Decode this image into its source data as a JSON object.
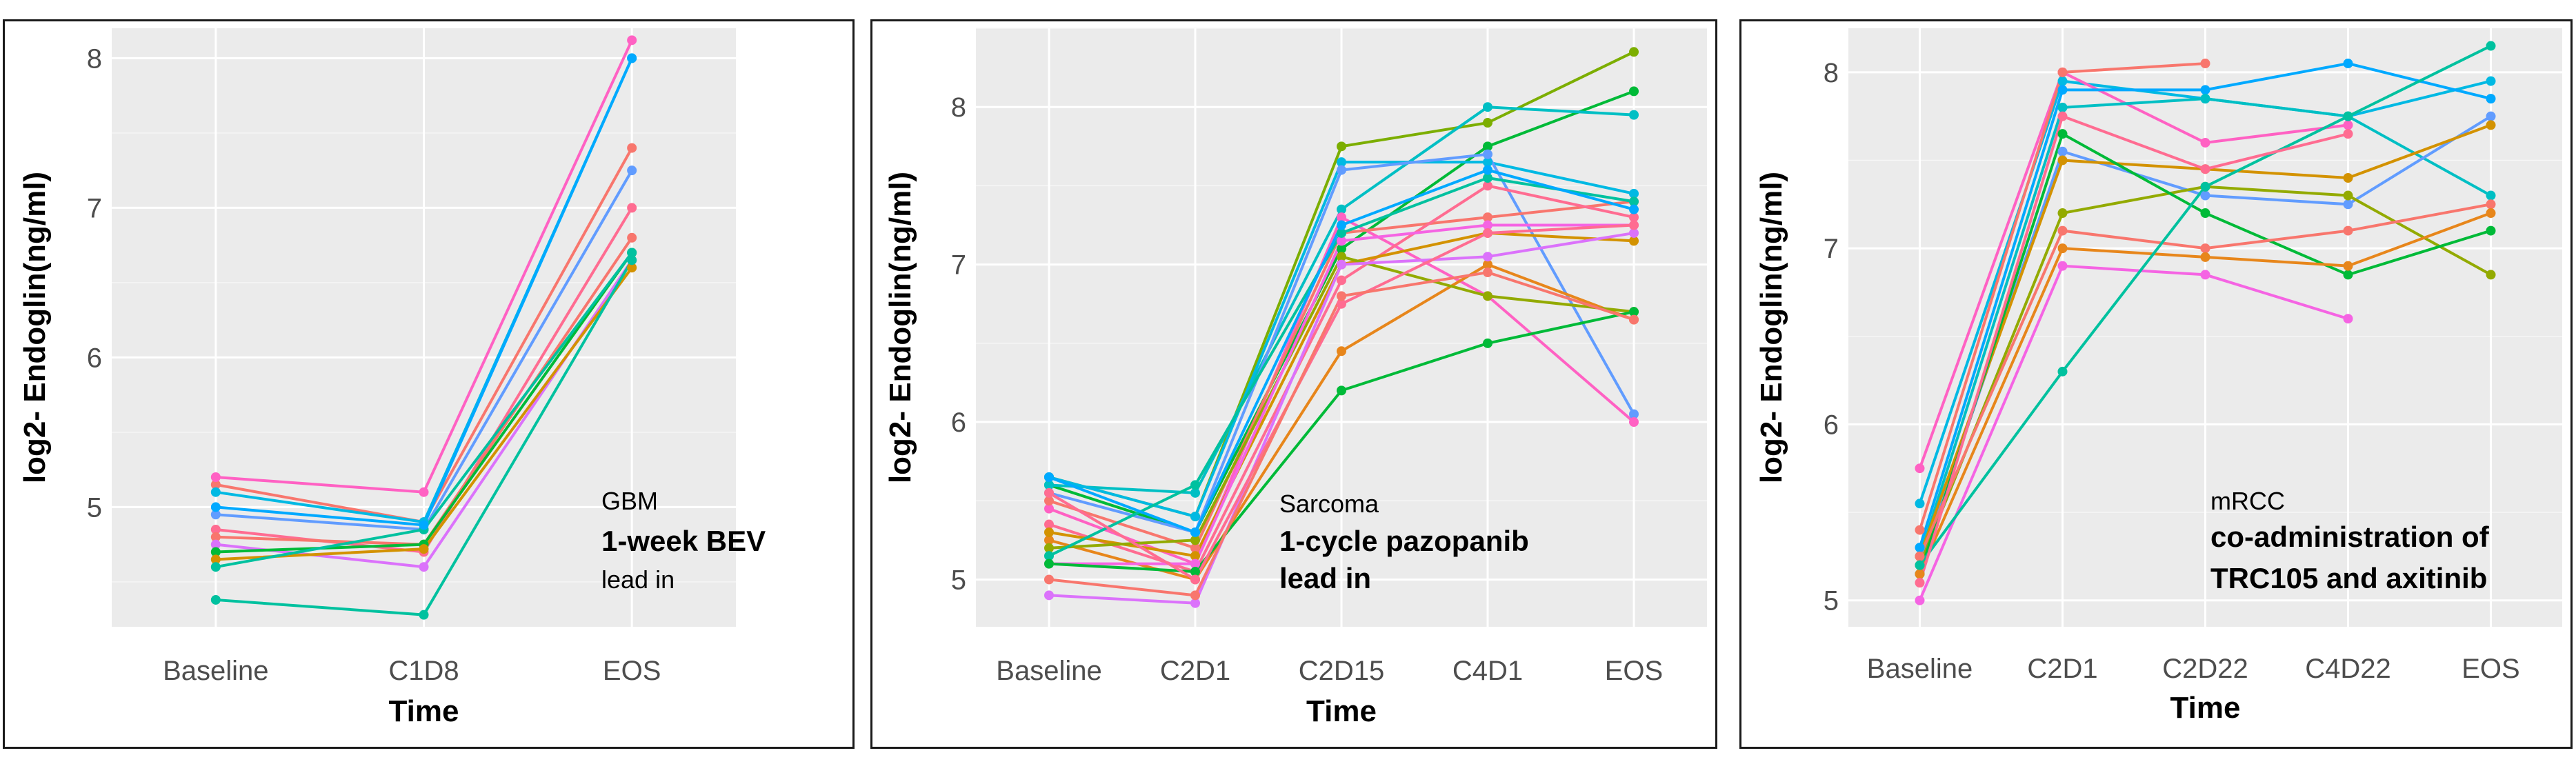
{
  "chart_data": [
    {
      "type": "line",
      "ylabel": "log2- Endoglin(ng/ml)",
      "xlabel": "Time",
      "categories": [
        "Baseline",
        "C1D8",
        "EOS"
      ],
      "y_ticks": [
        "5",
        "6",
        "7",
        "8"
      ],
      "ylim": [
        4.2,
        8.2
      ],
      "annotations": [
        "GBM",
        "1-week BEV",
        "lead in"
      ],
      "series": [
        {
          "name": "s1",
          "color": "#F8766D",
          "values": [
            5.15,
            4.9,
            7.4
          ]
        },
        {
          "name": "s2",
          "color": "#FF61C3",
          "values": [
            5.2,
            5.1,
            8.12
          ]
        },
        {
          "name": "s3",
          "color": "#00B9E3",
          "values": [
            5.1,
            4.9,
            8.0
          ]
        },
        {
          "name": "s4",
          "color": "#619CFF",
          "values": [
            4.95,
            4.85,
            7.25
          ]
        },
        {
          "name": "s5",
          "color": "#FF6C91",
          "values": [
            4.85,
            4.7,
            7.0
          ]
        },
        {
          "name": "s6",
          "color": "#F8766D",
          "values": [
            4.8,
            4.75,
            6.8
          ]
        },
        {
          "name": "s7",
          "color": "#DB72FB",
          "values": [
            4.75,
            4.6,
            6.65
          ]
        },
        {
          "name": "s8",
          "color": "#00BA38",
          "values": [
            4.7,
            4.75,
            6.7
          ]
        },
        {
          "name": "s9",
          "color": "#D39200",
          "values": [
            4.65,
            4.72,
            6.6
          ]
        },
        {
          "name": "s10",
          "color": "#00C19F",
          "values": [
            4.6,
            4.85,
            6.7
          ]
        },
        {
          "name": "s11",
          "color": "#00A9FF",
          "values": [
            5.0,
            4.88,
            8.0
          ]
        },
        {
          "name": "s12",
          "color": "#00C19F",
          "values": [
            4.38,
            4.28,
            6.65
          ]
        }
      ]
    },
    {
      "type": "line",
      "ylabel": "log2- Endoglin(ng/ml)",
      "xlabel": "Time",
      "categories": [
        "Baseline",
        "C2D1",
        "C2D15",
        "C4D1",
        "EOS"
      ],
      "y_ticks": [
        "5",
        "6",
        "7",
        "8"
      ],
      "ylim": [
        4.7,
        8.5
      ],
      "annotations": [
        "Sarcoma",
        "1-cycle pazopanib",
        "lead in"
      ],
      "series": [
        {
          "name": "s1",
          "color": "#7CAE00",
          "values": [
            5.65,
            5.4,
            7.75,
            7.9,
            8.35
          ]
        },
        {
          "name": "s2",
          "color": "#00BA38",
          "values": [
            5.6,
            5.3,
            7.1,
            7.75,
            8.1
          ]
        },
        {
          "name": "s3",
          "color": "#00BFC4",
          "values": [
            5.6,
            5.55,
            7.35,
            8.0,
            7.95
          ]
        },
        {
          "name": "s4",
          "color": "#00B9E3",
          "values": [
            5.65,
            5.4,
            7.65,
            7.65,
            7.45
          ]
        },
        {
          "name": "s5",
          "color": "#619CFF",
          "values": [
            5.55,
            5.3,
            7.6,
            7.7,
            6.05
          ]
        },
        {
          "name": "s6",
          "color": "#FF61C3",
          "values": [
            5.45,
            5.1,
            7.3,
            6.8,
            6.0
          ]
        },
        {
          "name": "s7",
          "color": "#F8766D",
          "values": [
            5.5,
            5.2,
            7.2,
            7.3,
            7.4
          ]
        },
        {
          "name": "s8",
          "color": "#FF6C91",
          "values": [
            5.35,
            5.05,
            6.9,
            7.5,
            7.3
          ]
        },
        {
          "name": "s9",
          "color": "#E7861B",
          "values": [
            5.25,
            5.0,
            6.45,
            7.0,
            6.65
          ]
        },
        {
          "name": "s10",
          "color": "#D39200",
          "values": [
            5.3,
            5.15,
            7.0,
            7.2,
            7.15
          ]
        },
        {
          "name": "s11",
          "color": "#93AA00",
          "values": [
            5.2,
            5.25,
            7.05,
            6.8,
            6.7
          ]
        },
        {
          "name": "s12",
          "color": "#F564E3",
          "values": [
            5.1,
            5.1,
            7.15,
            7.25,
            7.25
          ]
        },
        {
          "name": "s13",
          "color": "#DB72FB",
          "values": [
            4.9,
            4.85,
            7.0,
            7.05,
            7.2
          ]
        },
        {
          "name": "s14",
          "color": "#00C19F",
          "values": [
            5.15,
            5.6,
            7.2,
            7.55,
            7.4
          ]
        },
        {
          "name": "s15",
          "color": "#00BA38",
          "values": [
            5.1,
            5.05,
            6.2,
            6.5,
            6.7
          ]
        },
        {
          "name": "s16",
          "color": "#00A9FF",
          "values": [
            5.65,
            5.3,
            7.25,
            7.6,
            7.35
          ]
        },
        {
          "name": "s17",
          "color": "#FF6C91",
          "values": [
            5.55,
            5.0,
            6.75,
            7.2,
            7.25
          ]
        },
        {
          "name": "s18",
          "color": "#F8766D",
          "values": [
            5.0,
            4.9,
            6.8,
            6.95,
            6.65
          ]
        }
      ]
    },
    {
      "type": "line",
      "ylabel": "log2- Endoglin(ng/ml)",
      "xlabel": "Time",
      "categories": [
        "Baseline",
        "C2D1",
        "C2D22",
        "C4D22",
        "EOS"
      ],
      "y_ticks": [
        "5",
        "6",
        "7",
        "8"
      ],
      "ylim": [
        4.85,
        8.25
      ],
      "annotations": [
        "mRCC",
        "co-administration of",
        "TRC105 and axitinib"
      ],
      "series": [
        {
          "name": "s1",
          "color": "#00B9E3",
          "values": [
            5.55,
            7.95,
            7.85,
            7.75,
            7.95
          ]
        },
        {
          "name": "s2",
          "color": "#FF61C3",
          "values": [
            5.75,
            8.0,
            7.6,
            7.7,
            null
          ]
        },
        {
          "name": "s3",
          "color": "#00A9FF",
          "values": [
            5.3,
            7.9,
            7.9,
            8.05,
            7.85
          ]
        },
        {
          "name": "s4",
          "color": "#F8766D",
          "values": [
            5.4,
            8.0,
            8.05,
            null,
            null
          ]
        },
        {
          "name": "s5",
          "color": "#00BFC4",
          "values": [
            5.25,
            7.8,
            7.85,
            7.75,
            7.3
          ]
        },
        {
          "name": "s6",
          "color": "#619CFF",
          "values": [
            5.2,
            7.55,
            7.3,
            7.25,
            7.75
          ]
        },
        {
          "name": "s7",
          "color": "#D39200",
          "values": [
            5.25,
            7.5,
            7.45,
            7.4,
            7.7
          ]
        },
        {
          "name": "s8",
          "color": "#93AA00",
          "values": [
            5.2,
            7.2,
            7.35,
            7.3,
            6.85
          ]
        },
        {
          "name": "s9",
          "color": "#00BA38",
          "values": [
            5.15,
            7.65,
            7.2,
            6.85,
            7.1
          ]
        },
        {
          "name": "s10",
          "color": "#F8766D",
          "values": [
            5.25,
            7.1,
            7.0,
            7.1,
            7.25
          ]
        },
        {
          "name": "s11",
          "color": "#E7861B",
          "values": [
            5.15,
            7.0,
            6.95,
            6.9,
            7.2
          ]
        },
        {
          "name": "s12",
          "color": "#F564E3",
          "values": [
            5.0,
            6.9,
            6.85,
            6.6,
            null
          ]
        },
        {
          "name": "s13",
          "color": "#00C19F",
          "values": [
            5.2,
            6.3,
            7.35,
            7.75,
            8.15
          ]
        },
        {
          "name": "s14",
          "color": "#FF6C91",
          "values": [
            5.1,
            7.75,
            7.45,
            7.65,
            null
          ]
        }
      ]
    }
  ]
}
